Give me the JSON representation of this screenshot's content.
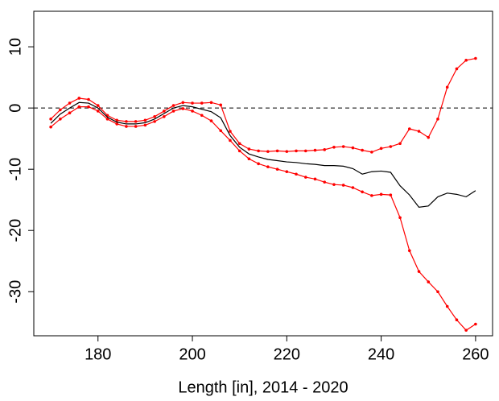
{
  "chart_data": {
    "type": "line",
    "xlabel": "Length [in], 2014 - 2020",
    "x": [
      170,
      172,
      174,
      176,
      178,
      180,
      182,
      184,
      186,
      188,
      190,
      192,
      194,
      196,
      198,
      200,
      202,
      204,
      206,
      208,
      210,
      212,
      214,
      216,
      218,
      220,
      222,
      224,
      226,
      228,
      230,
      232,
      234,
      236,
      238,
      240,
      242,
      244,
      246,
      248,
      250,
      252,
      254,
      256,
      258,
      260
    ],
    "series": [
      {
        "color": "#ff0000",
        "markers": true,
        "values": [
          -1.8,
          -0.3,
          0.8,
          1.6,
          1.4,
          0.4,
          -1.2,
          -2.0,
          -2.2,
          -2.2,
          -2.0,
          -1.4,
          -0.5,
          0.4,
          0.9,
          0.8,
          0.8,
          0.9,
          0.5,
          -3.8,
          -5.8,
          -6.7,
          -7.0,
          -7.1,
          -7.0,
          -7.1,
          -7.0,
          -7.0,
          -6.9,
          -6.8,
          -6.4,
          -6.3,
          -6.5,
          -6.9,
          -7.2,
          -6.6,
          -6.3,
          -5.8,
          -3.4,
          -3.8,
          -4.8,
          -1.8,
          3.4,
          6.4,
          7.8,
          8.1
        ]
      },
      {
        "color": "#ff0000",
        "markers": true,
        "values": [
          -3.1,
          -1.8,
          -0.8,
          0.2,
          0.2,
          -0.5,
          -1.8,
          -2.6,
          -3.0,
          -3.0,
          -2.8,
          -2.2,
          -1.4,
          -0.5,
          -0.1,
          -0.5,
          -1.2,
          -2.1,
          -3.7,
          -5.3,
          -7.0,
          -8.3,
          -9.1,
          -9.6,
          -10.0,
          -10.4,
          -10.8,
          -11.3,
          -11.6,
          -12.1,
          -12.5,
          -12.6,
          -13.0,
          -13.7,
          -14.3,
          -14.1,
          -14.2,
          -17.9,
          -23.3,
          -26.7,
          -28.4,
          -30.0,
          -32.4,
          -34.6,
          -36.3,
          -35.3
        ]
      },
      {
        "color": "#000000",
        "markers": false,
        "values": [
          -2.5,
          -1.0,
          0.0,
          0.9,
          0.8,
          0.0,
          -1.5,
          -2.3,
          -2.6,
          -2.6,
          -2.4,
          -1.8,
          -0.9,
          0.0,
          0.4,
          0.2,
          -0.2,
          -0.6,
          -1.6,
          -4.5,
          -6.4,
          -7.5,
          -8.0,
          -8.4,
          -8.6,
          -8.8,
          -8.9,
          -9.1,
          -9.2,
          -9.4,
          -9.4,
          -9.5,
          -9.9,
          -10.8,
          -10.4,
          -10.3,
          -10.5,
          -12.7,
          -14.2,
          -16.2,
          -16.0,
          -14.5,
          -13.9,
          -14.1,
          -14.5,
          -13.5
        ]
      }
    ],
    "hline": 0,
    "xlim": [
      166.4,
      263.6
    ],
    "xticks": [
      180,
      200,
      220,
      240,
      260
    ],
    "ylim": [
      -37.2,
      15.8
    ],
    "yticks": [
      -30,
      -20,
      -10,
      0,
      10
    ]
  }
}
